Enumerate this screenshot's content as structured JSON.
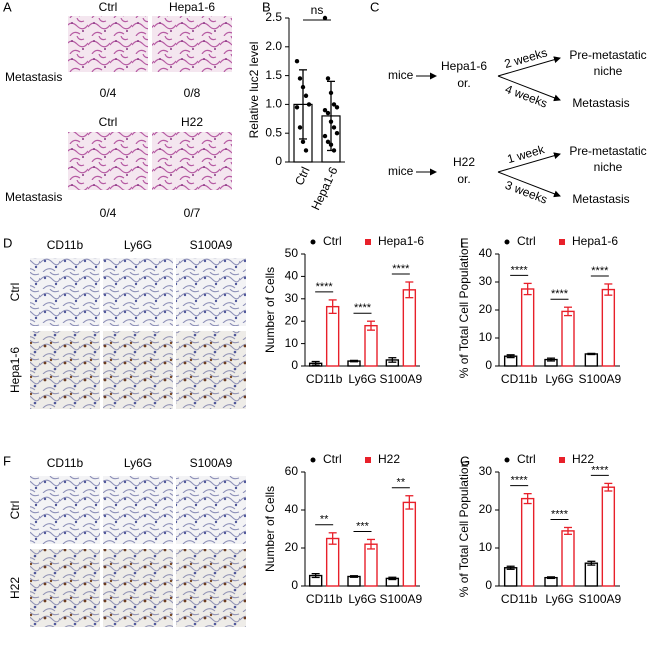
{
  "panel_labels": [
    "A",
    "B",
    "C",
    "D",
    "E",
    "F",
    "G"
  ],
  "panel_a": {
    "rows": [
      {
        "columns": [
          "Ctrl",
          "Hepa1-6"
        ],
        "row_label": "Metastasis",
        "ratios": [
          "0/4",
          "0/8"
        ]
      },
      {
        "columns": [
          "Ctrl",
          "H22"
        ],
        "row_label": "Metastasis",
        "ratios": [
          "0/4",
          "0/7"
        ]
      }
    ]
  },
  "panel_c": {
    "groups": [
      {
        "source": "mice",
        "model": "Hepa1-6",
        "model_note": "or.",
        "early_time": "2 weeks",
        "early_outcome": [
          "Pre-metastatic",
          "niche"
        ],
        "late_time": "4 weeks",
        "late_outcome": "Metastasis"
      },
      {
        "source": "mice",
        "model": "H22",
        "model_note": "or.",
        "early_time": "1 week",
        "early_outcome": [
          "Pre-metastatic",
          "niche"
        ],
        "late_time": "3 weeks",
        "late_outcome": "Metastasis"
      }
    ]
  },
  "panel_d": {
    "columns": [
      "CD11b",
      "Ly6G",
      "S100A9"
    ],
    "rows": [
      "Ctrl",
      "Hepa1-6"
    ]
  },
  "panel_f": {
    "columns": [
      "CD11b",
      "Ly6G",
      "S100A9"
    ],
    "rows": [
      "Ctrl",
      "H22"
    ]
  },
  "chart_data": [
    {
      "type": "bar",
      "ylabel": "Relative luc2 level",
      "categories": [
        "Ctrl",
        "Hepa1-6"
      ],
      "values": [
        1.0,
        0.8
      ],
      "errors": [
        0.6,
        0.6
      ],
      "points": [
        [
          1.75,
          1.45,
          1.3,
          1.15,
          1.0,
          0.95,
          0.6,
          0.35,
          0.2
        ],
        [
          2.5,
          1.45,
          1.2,
          1.0,
          0.95,
          0.9,
          0.85,
          0.7,
          0.6,
          0.5,
          0.45,
          0.35,
          0.3,
          0.2
        ]
      ],
      "color": "#000000",
      "annotation": "ns",
      "ylim": [
        0,
        2.5
      ],
      "yticks": [
        0,
        0.5,
        {
          "value": 1,
          "label": "1.0"
        },
        1.5,
        {
          "value": 2,
          "label": "2.0"
        },
        2.5
      ]
    },
    {
      "type": "bar",
      "ylabel": "Number of Cells",
      "categories": [
        "CD11b",
        "Ly6G",
        "S100A9"
      ],
      "series": [
        {
          "name": "Ctrl",
          "color": "#000000",
          "values": [
            1.2,
            2.2,
            2.7
          ],
          "errors": [
            0.8,
            0.3,
            1.0
          ]
        },
        {
          "name": "Hepa1-6",
          "color": "#e8202a",
          "values": [
            26.5,
            18,
            34
          ],
          "errors": [
            3,
            2,
            3.5
          ]
        }
      ],
      "annotations": [
        "****",
        "****",
        "****"
      ],
      "ylim": [
        0,
        50
      ],
      "yticks": [
        0,
        10,
        20,
        30,
        40,
        50
      ]
    },
    {
      "type": "bar",
      "ylabel": "% of Total Cell Population",
      "categories": [
        "CD11b",
        "Ly6G",
        "S100A9"
      ],
      "series": [
        {
          "name": "Ctrl",
          "color": "#000000",
          "values": [
            3.5,
            2.3,
            4.3
          ],
          "errors": [
            0.5,
            0.5,
            0.2
          ]
        },
        {
          "name": "Hepa1-6",
          "color": "#e8202a",
          "values": [
            27.5,
            19.5,
            27.3
          ],
          "errors": [
            2,
            1.5,
            2
          ]
        }
      ],
      "annotations": [
        "****",
        "****",
        "****"
      ],
      "ylim": [
        0,
        40
      ],
      "yticks": [
        0,
        10,
        20,
        30,
        40
      ]
    },
    {
      "type": "bar",
      "ylabel": "Number of Cells",
      "categories": [
        "CD11b",
        "Ly6G",
        "S100A9"
      ],
      "series": [
        {
          "name": "Ctrl",
          "color": "#000000",
          "values": [
            5.5,
            5,
            4
          ],
          "errors": [
            1,
            0.4,
            0.6
          ]
        },
        {
          "name": "H22",
          "color": "#e8202a",
          "values": [
            25,
            22,
            44
          ],
          "errors": [
            3,
            2.5,
            3.5
          ]
        }
      ],
      "annotations": [
        "**",
        "***",
        "**"
      ],
      "ylim": [
        0,
        60
      ],
      "yticks": [
        0,
        20,
        40,
        60
      ]
    },
    {
      "type": "bar",
      "ylabel": "% of Total Cell Population",
      "categories": [
        "CD11b",
        "Ly6G",
        "S100A9"
      ],
      "series": [
        {
          "name": "Ctrl",
          "color": "#000000",
          "values": [
            4.8,
            2.2,
            6
          ],
          "errors": [
            0.4,
            0.2,
            0.5
          ]
        },
        {
          "name": "H22",
          "color": "#e8202a",
          "values": [
            23,
            14.5,
            26
          ],
          "errors": [
            1.3,
            0.9,
            1
          ]
        }
      ],
      "annotations": [
        "****",
        "****",
        "****"
      ],
      "ylim": [
        0,
        30
      ],
      "yticks": [
        0,
        10,
        20,
        30
      ]
    }
  ]
}
